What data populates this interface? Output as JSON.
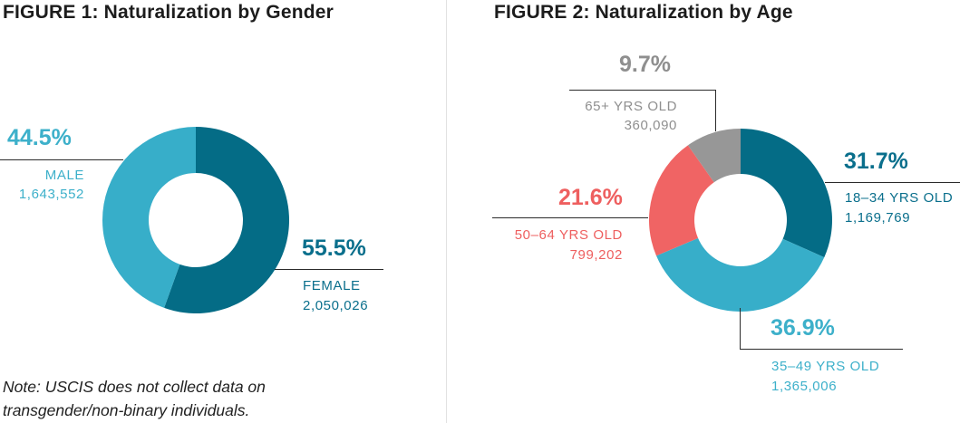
{
  "colors": {
    "teal_dark": "#046c86",
    "teal_light": "#37aec9",
    "coral": "#f06464",
    "gray": "#979797",
    "male_text": "#3db0ca",
    "female_text": "#0a6f8c",
    "coral_text": "#ee5f5f",
    "gray_text": "#8f8f8f"
  },
  "figure1": {
    "title": "FIGURE 1:  Naturalization by Gender",
    "note_line1": "Note: USCIS does not collect data on",
    "note_line2": "transgender/non-binary individuals."
  },
  "figure2": {
    "title": "FIGURE 2:  Naturalization by Age"
  },
  "chart_data": [
    {
      "type": "pie",
      "variant": "donut",
      "title": "FIGURE 1:  Naturalization by Gender",
      "slices": [
        {
          "label": "FEMALE",
          "percent": 55.5,
          "percent_label": "55.5%",
          "value": 2050026,
          "value_label": "2,050,026",
          "color": "#046c86"
        },
        {
          "label": "MALE",
          "percent": 44.5,
          "percent_label": "44.5%",
          "value": 1643552,
          "value_label": "1,643,552",
          "color": "#37aec9"
        }
      ]
    },
    {
      "type": "pie",
      "variant": "donut",
      "title": "FIGURE 2:  Naturalization by Age",
      "slices": [
        {
          "label": "18–34 YRS OLD",
          "percent": 31.7,
          "percent_label": "31.7%",
          "value": 1169769,
          "value_label": "1,169,769",
          "color": "#046c86"
        },
        {
          "label": "35–49 YRS OLD",
          "percent": 36.9,
          "percent_label": "36.9%",
          "value": 1365006,
          "value_label": "1,365,006",
          "color": "#37aec9"
        },
        {
          "label": "50–64 YRS OLD",
          "percent": 21.6,
          "percent_label": "21.6%",
          "value": 799202,
          "value_label": "799,202",
          "color": "#f06464"
        },
        {
          "label": "65+ YRS OLD",
          "percent": 9.7,
          "percent_label": "9.7%",
          "value": 360090,
          "value_label": "360,090",
          "color": "#979797"
        }
      ]
    }
  ]
}
